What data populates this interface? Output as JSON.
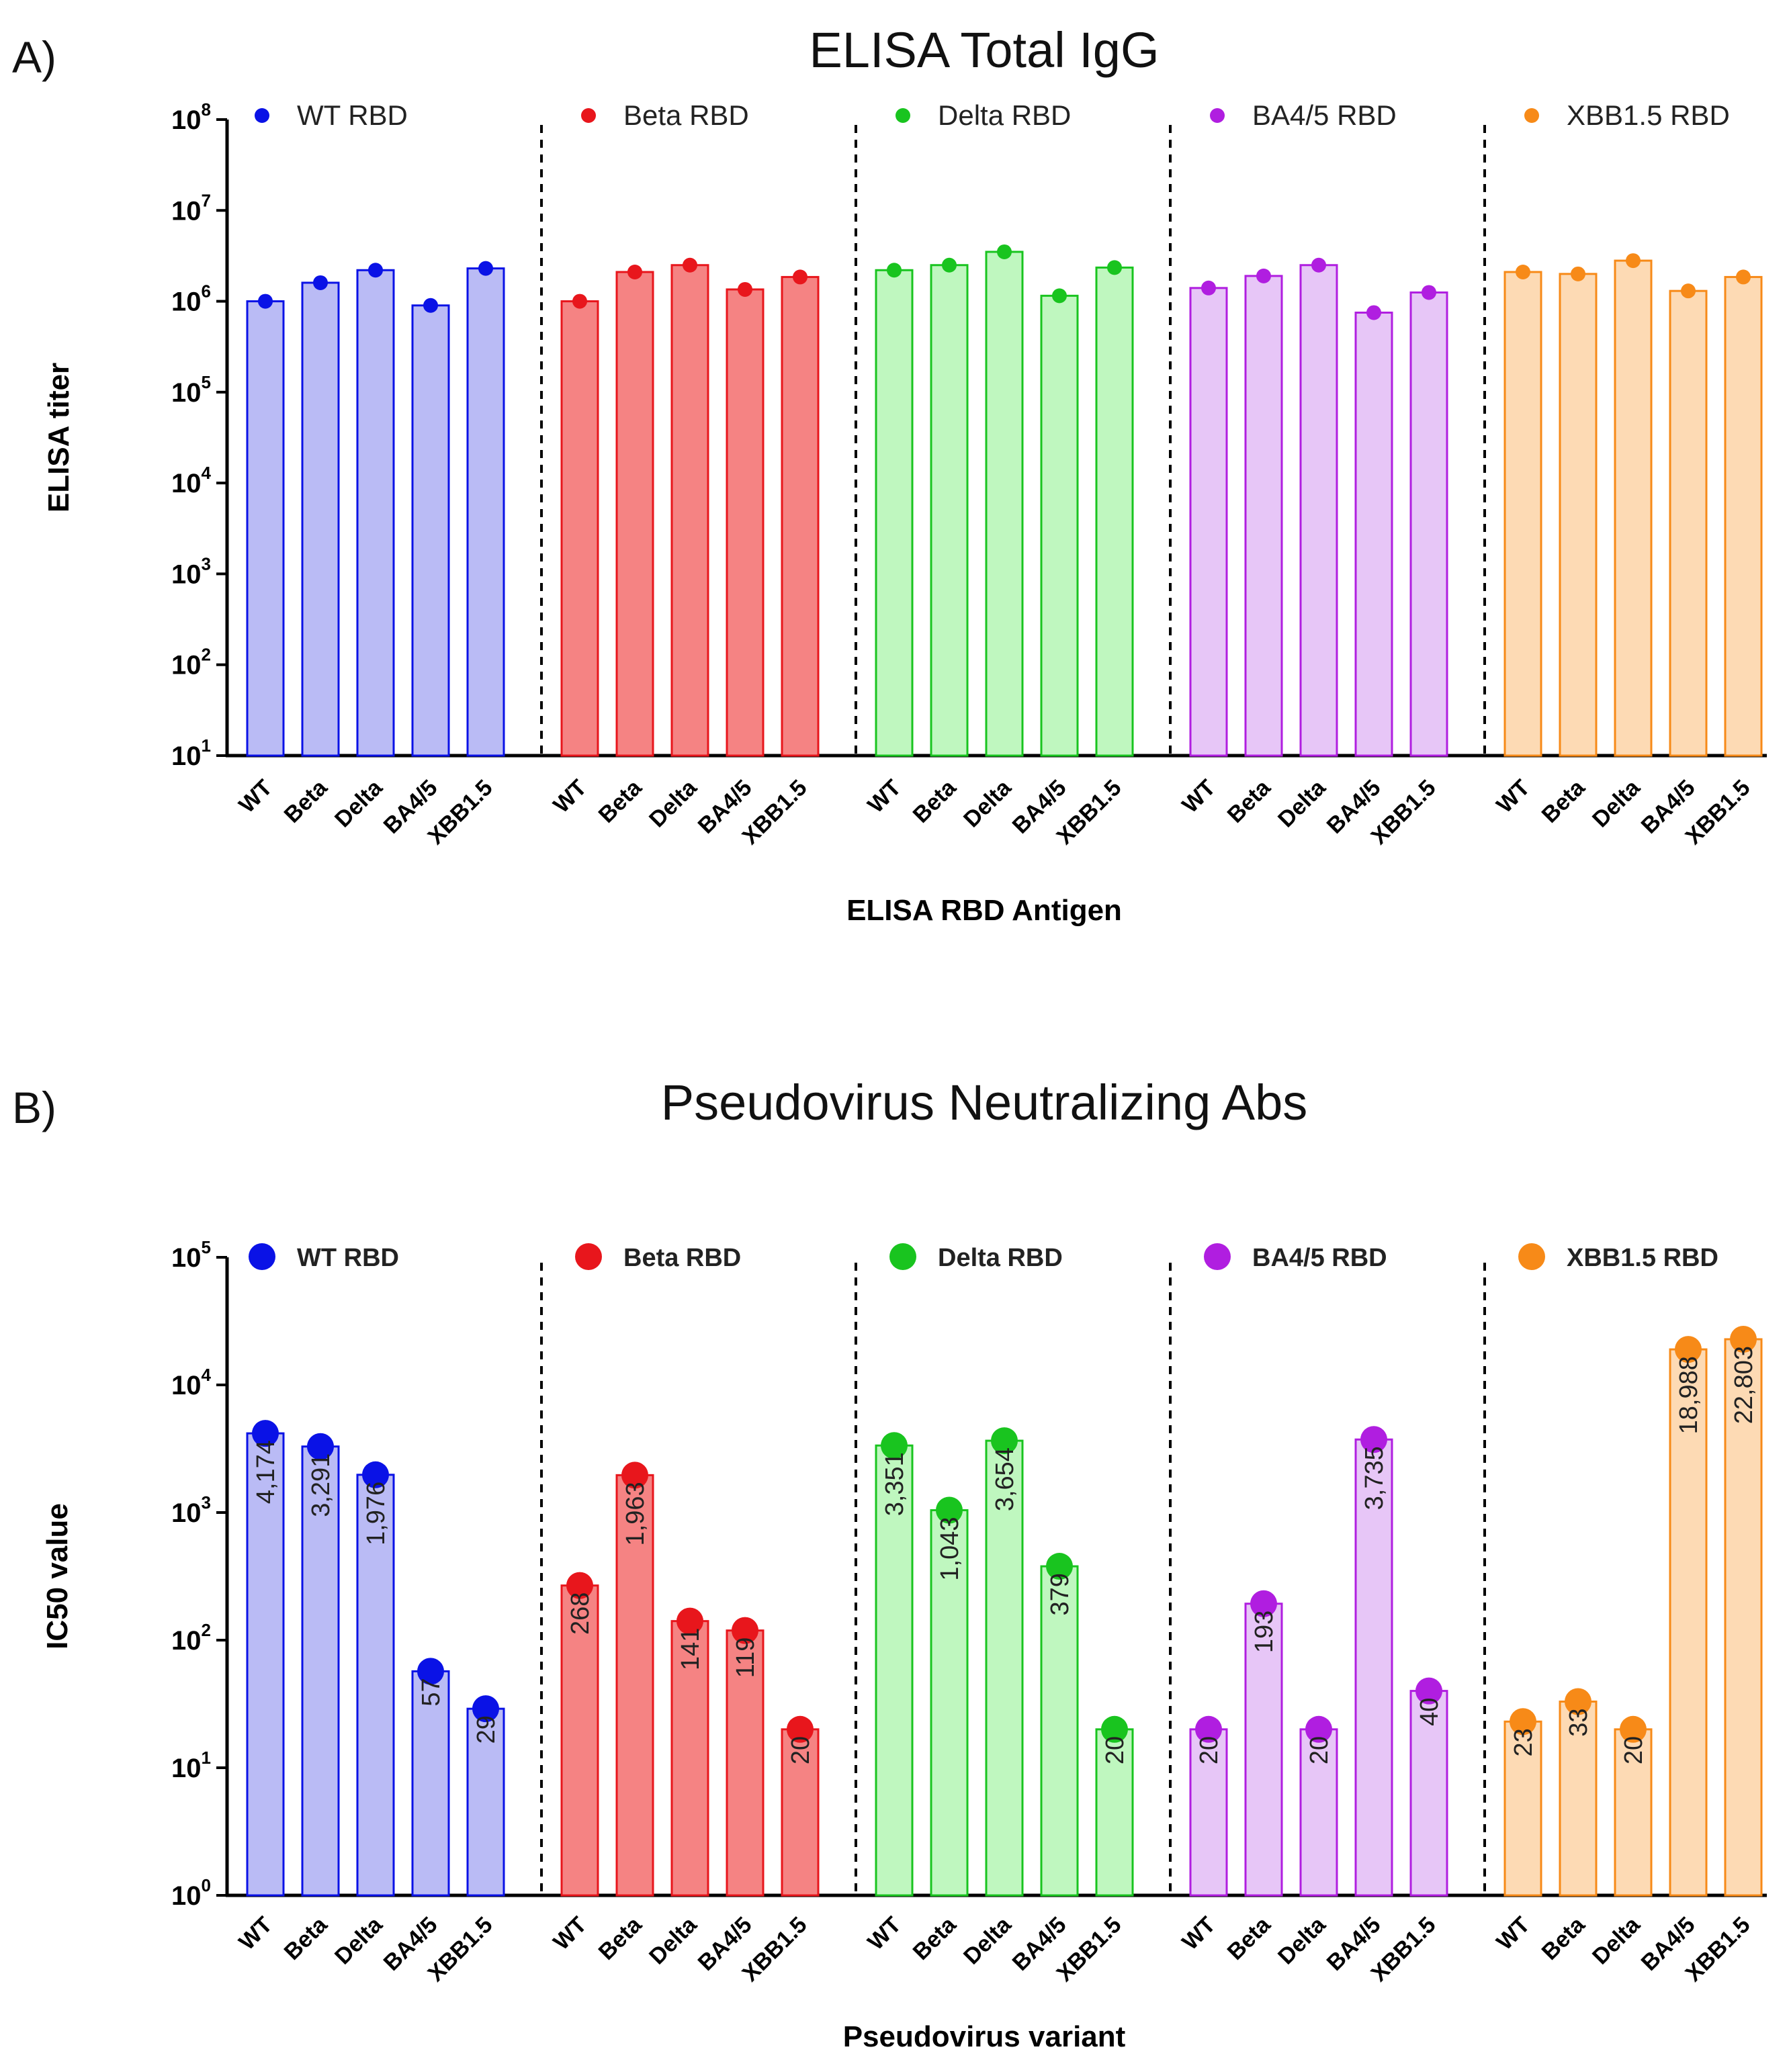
{
  "chart_data": [
    {
      "panel": "A)",
      "type": "bar",
      "title": "ELISA Total IgG",
      "xlabel": "ELISA RBD Antigen",
      "ylabel": "ELISA titer",
      "yscale": "log",
      "ylim": [
        10,
        100000000
      ],
      "y_ticks": [
        {
          "base": "10",
          "exp": "1"
        },
        {
          "base": "10",
          "exp": "2"
        },
        {
          "base": "10",
          "exp": "3"
        },
        {
          "base": "10",
          "exp": "4"
        },
        {
          "base": "10",
          "exp": "5"
        },
        {
          "base": "10",
          "exp": "6"
        },
        {
          "base": "10",
          "exp": "7"
        },
        {
          "base": "10",
          "exp": "8"
        }
      ],
      "categories": [
        "WT",
        "Beta",
        "Delta",
        "BA4/5",
        "XBB1.5"
      ],
      "series": [
        {
          "name": "WT RBD",
          "color": "#0a12e6",
          "fill": "#babbf5",
          "values": [
            1000000,
            1600000,
            2200000,
            900000,
            2300000
          ]
        },
        {
          "name": "Beta RBD",
          "color": "#e8161c",
          "fill": "#f58383",
          "values": [
            1000000,
            2100000,
            2500000,
            1350000,
            1850000
          ]
        },
        {
          "name": "Delta RBD",
          "color": "#19c41f",
          "fill": "#bff7bf",
          "values": [
            2200000,
            2500000,
            3500000,
            1150000,
            2350000
          ]
        },
        {
          "name": "BA4/5 RBD",
          "color": "#b01ee0",
          "fill": "#e7c6f7",
          "values": [
            1400000,
            1900000,
            2500000,
            750000,
            1250000
          ]
        },
        {
          "name": "XBB1.5 RBD",
          "color": "#f78a18",
          "fill": "#fddab4",
          "values": [
            2100000,
            2000000,
            2800000,
            1300000,
            1850000
          ]
        }
      ],
      "legend": "top, one entry per group",
      "grid": false
    },
    {
      "panel": "B)",
      "type": "bar",
      "title": "Pseudovirus Neutralizing Abs",
      "xlabel": "Pseudovirus variant",
      "ylabel": "IC50 value",
      "yscale": "log",
      "ylim": [
        1,
        100000
      ],
      "y_ticks": [
        {
          "base": "10",
          "exp": "0"
        },
        {
          "base": "10",
          "exp": "1"
        },
        {
          "base": "10",
          "exp": "2"
        },
        {
          "base": "10",
          "exp": "3"
        },
        {
          "base": "10",
          "exp": "4"
        },
        {
          "base": "10",
          "exp": "5"
        }
      ],
      "categories": [
        "WT",
        "Beta",
        "Delta",
        "BA4/5",
        "XBB1.5"
      ],
      "series": [
        {
          "name": "WT RBD",
          "color": "#0a12e6",
          "fill": "#babbf5",
          "values": [
            4174,
            3291,
            1976,
            57,
            29
          ],
          "labels": [
            "4,174",
            "3,291",
            "1,976",
            "57",
            "29"
          ]
        },
        {
          "name": "Beta RBD",
          "color": "#e8161c",
          "fill": "#f58383",
          "values": [
            268,
            1963,
            141,
            119,
            20
          ],
          "labels": [
            "268",
            "1,963",
            "141",
            "119",
            "20"
          ]
        },
        {
          "name": "Delta RBD",
          "color": "#19c41f",
          "fill": "#bff7bf",
          "values": [
            3351,
            1043,
            3654,
            379,
            20
          ],
          "labels": [
            "3,351",
            "1,043",
            "3,654",
            "379",
            "20"
          ]
        },
        {
          "name": "BA4/5 RBD",
          "color": "#b01ee0",
          "fill": "#e7c6f7",
          "values": [
            20,
            193,
            20,
            3735,
            40
          ],
          "labels": [
            "20",
            "193",
            "20",
            "3,735",
            "40"
          ]
        },
        {
          "name": "XBB1.5 RBD",
          "color": "#f78a18",
          "fill": "#fddab4",
          "values": [
            23,
            33,
            20,
            18988,
            22803
          ],
          "labels": [
            "23",
            "33",
            "20",
            "18,988",
            "22,803"
          ]
        }
      ],
      "legend": "top, one entry per group",
      "grid": false
    }
  ]
}
